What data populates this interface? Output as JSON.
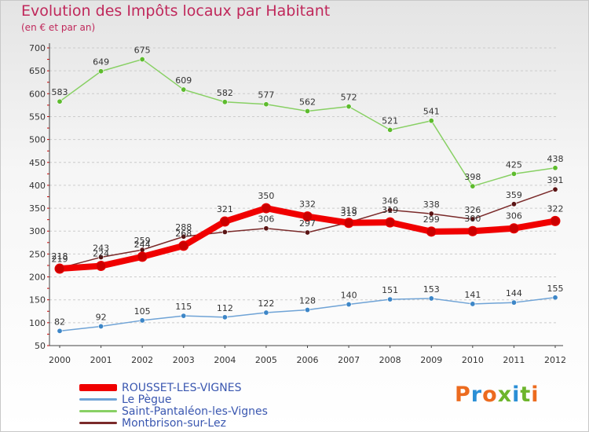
{
  "header": {
    "title": "Evolution des Impôts locaux par Habitant",
    "subtitle": "(en € et par an)"
  },
  "branding": {
    "logo_text": "Proxiti"
  },
  "colors": {
    "title": "#c0285b",
    "legend_text": "#3a57b0",
    "grid": "#cccccc",
    "axis": "#444444"
  },
  "chart_data": {
    "type": "line",
    "title": "Evolution des Impôts locaux par Habitant",
    "subtitle": "(en € et par an)",
    "xlabel": "",
    "ylabel": "",
    "x": [
      "2000",
      "2001",
      "2002",
      "2003",
      "2004",
      "2005",
      "2006",
      "2007",
      "2008",
      "2009",
      "2010",
      "2011",
      "2012"
    ],
    "ylim": [
      50,
      700
    ],
    "yticks": [
      50,
      100,
      150,
      200,
      250,
      300,
      350,
      400,
      450,
      500,
      550,
      600,
      650,
      700
    ],
    "grid": "horizontal dashed",
    "legend_position": "bottom-left",
    "series": [
      {
        "name": "ROUSSET-LES-VIGNES",
        "color": "#f00000",
        "dot": "#cc0000",
        "values": [
          218,
          224,
          244,
          268,
          321,
          350,
          332,
          318,
          319,
          299,
          300,
          306,
          322
        ],
        "labels": [
          "218",
          "224",
          "244",
          "268",
          "321",
          "350",
          "332",
          "318",
          "319",
          "299",
          "300",
          "306",
          "322"
        ]
      },
      {
        "name": "Le Pègue",
        "color": "#6fa3d6",
        "dot": "#3d86c7",
        "values": [
          82,
          92,
          105,
          115,
          112,
          122,
          128,
          140,
          151,
          153,
          141,
          144,
          155
        ],
        "labels": [
          "82",
          "92",
          "105",
          "115",
          "112",
          "122",
          "128",
          "140",
          "151",
          "153",
          "141",
          "144",
          "155"
        ]
      },
      {
        "name": "Saint-Pantaléon-les-Vignes",
        "color": "#88d064",
        "dot": "#5dbb2d",
        "values": [
          583,
          649,
          675,
          609,
          582,
          577,
          562,
          572,
          521,
          541,
          398,
          425,
          438
        ],
        "labels": [
          "583",
          "649",
          "675",
          "609",
          "582",
          "577",
          "562",
          "572",
          "521",
          "541",
          "398",
          "425",
          "438"
        ]
      },
      {
        "name": "Montbrison-sur-Lez",
        "color": "#7a2a2a",
        "dot": "#5a1414",
        "values": [
          219,
          243,
          259,
          288,
          298,
          306,
          297,
          319,
          346,
          338,
          326,
          359,
          391
        ],
        "labels": [
          "219",
          "243",
          "259",
          "288",
          "",
          "306",
          "297",
          "319",
          "346",
          "338",
          "326",
          "359",
          "391"
        ]
      }
    ]
  }
}
